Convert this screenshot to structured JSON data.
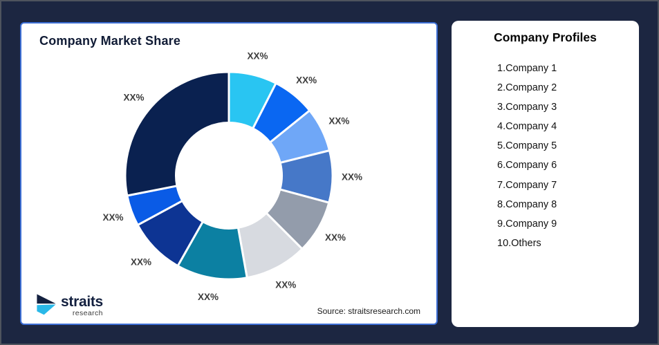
{
  "colors": {
    "frame_bg": "#1C2641",
    "frame_border": "#4E545E",
    "card_border": "#3D6FD6",
    "slice_gap": "#FFFFFF",
    "label_text": "#3D3D3D"
  },
  "left_card": {
    "title": "Company Market Share",
    "source": "Source: straitsresearch.com"
  },
  "logo": {
    "name": "straits",
    "sub": "research",
    "navy": "#13203F",
    "cyan": "#29B8E8"
  },
  "right_card": {
    "title": "Company Profiles",
    "items": [
      "1.Company 1",
      "2.Company 2",
      "3.Company 3",
      "4.Company 4",
      "5.Company 5",
      "6.Company 6",
      "7.Company 7",
      "8.Company 8",
      "9.Company 9",
      "10.Others"
    ]
  },
  "chart_data": {
    "type": "pie",
    "subtype": "donut",
    "title": "Company Market Share",
    "legend_position": "none",
    "start_angle_deg": 0,
    "clockwise": true,
    "inner_radius_ratio": 0.51,
    "value_labels_masked_as": "XX%",
    "slices": [
      {
        "name": "Company 1",
        "label": "XX%",
        "value_pct": 7.5,
        "color": "#29C5F2"
      },
      {
        "name": "Company 2",
        "label": "XX%",
        "value_pct": 6.7,
        "color": "#0A67F2"
      },
      {
        "name": "Company 3",
        "label": "XX%",
        "value_pct": 6.9,
        "color": "#6FA7F7"
      },
      {
        "name": "Company 4",
        "label": "XX%",
        "value_pct": 8.1,
        "color": "#4678C8"
      },
      {
        "name": "Company 5",
        "label": "XX%",
        "value_pct": 8.3,
        "color": "#939CAB"
      },
      {
        "name": "Company 6",
        "label": "XX%",
        "value_pct": 9.7,
        "color": "#D7DAE0"
      },
      {
        "name": "Company 7",
        "label": "XX%",
        "value_pct": 11.0,
        "color": "#0C80A2"
      },
      {
        "name": "Company 8",
        "label": "XX%",
        "value_pct": 8.9,
        "color": "#0D3493"
      },
      {
        "name": "Company 9",
        "label": "XX%",
        "value_pct": 4.8,
        "color": "#0A5BE6"
      },
      {
        "name": "Others",
        "label": "XX%",
        "value_pct": 28.1,
        "color": "#0A2150"
      }
    ]
  }
}
